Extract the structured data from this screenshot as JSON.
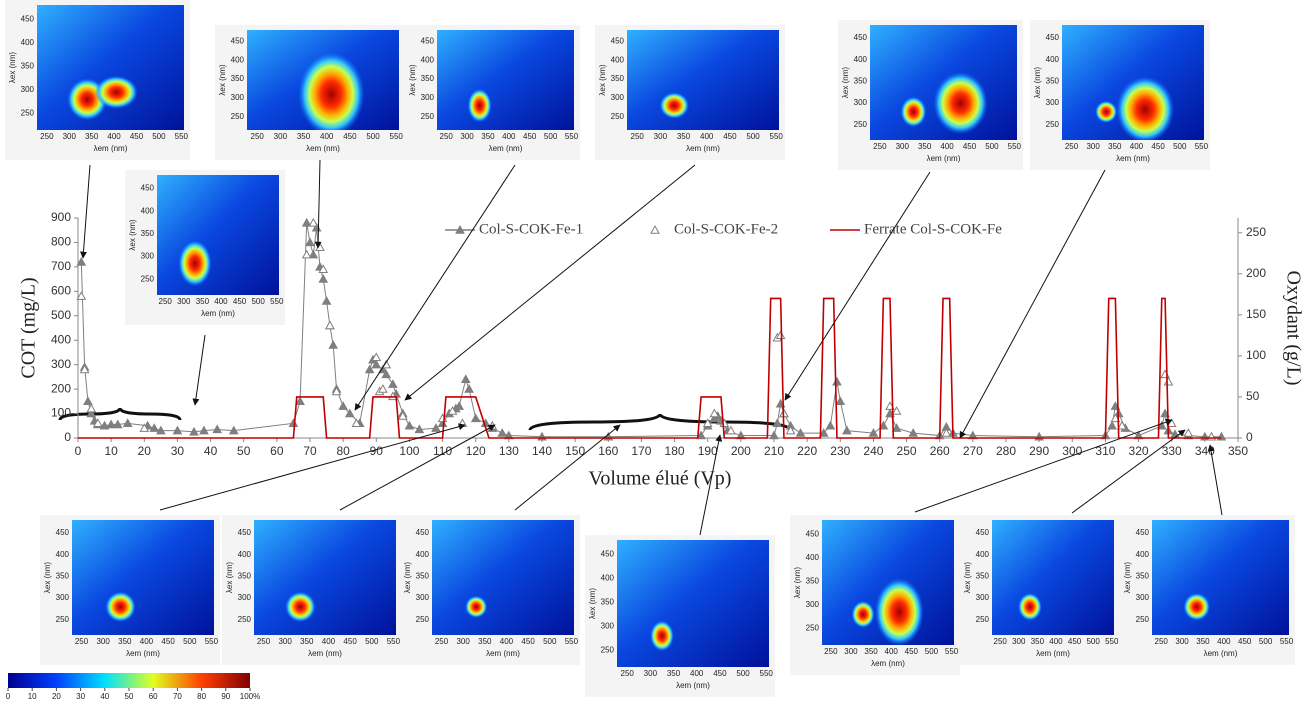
{
  "chart_data": {
    "type": "line",
    "xlabel": "Volume élué (Vp)",
    "ylabel": "COT (mg/L)",
    "y2label": "Oxydant (g/L)",
    "xlim": [
      0,
      350
    ],
    "xticks": [
      0,
      10,
      20,
      30,
      40,
      50,
      60,
      70,
      80,
      90,
      100,
      110,
      120,
      130,
      140,
      150,
      160,
      170,
      180,
      190,
      200,
      210,
      220,
      230,
      240,
      250,
      260,
      270,
      280,
      290,
      300,
      310,
      320,
      330,
      340,
      350
    ],
    "ylim": [
      0,
      900
    ],
    "yticks": [
      0,
      100,
      200,
      300,
      400,
      500,
      600,
      700,
      800,
      900
    ],
    "y2lim": [
      0,
      268
    ],
    "y2ticks": [
      0,
      50,
      100,
      150,
      200,
      250
    ],
    "series": [
      {
        "name": "Col-S-COK-Fe-1",
        "color": "#7f7f7f",
        "marker": "triangle",
        "filled": true,
        "line": true,
        "x": [
          1,
          2,
          3,
          4,
          5,
          6,
          8,
          10,
          12,
          15,
          21,
          23,
          25,
          30,
          35,
          38,
          42,
          47,
          65,
          67,
          69,
          70,
          71,
          72,
          73,
          74,
          75,
          76,
          77,
          78,
          80,
          82,
          85,
          88,
          89,
          90,
          92,
          93,
          95,
          96,
          98,
          100,
          103,
          108,
          110,
          112,
          114,
          115,
          117,
          118,
          120,
          123,
          125,
          128,
          130,
          140,
          160,
          188,
          190,
          192,
          193,
          194,
          196,
          200,
          210,
          211,
          212,
          213,
          215,
          218,
          225,
          227,
          229,
          230,
          232,
          240,
          243,
          245,
          247,
          252,
          260,
          262,
          264,
          270,
          290,
          310,
          312,
          313,
          314,
          316,
          320,
          327,
          328,
          329,
          331,
          335,
          340,
          345
        ],
        "values": [
          720,
          290,
          150,
          100,
          70,
          55,
          50,
          55,
          55,
          60,
          50,
          40,
          30,
          30,
          25,
          30,
          35,
          30,
          60,
          150,
          880,
          800,
          750,
          860,
          700,
          650,
          560,
          460,
          380,
          200,
          130,
          100,
          60,
          280,
          320,
          300,
          280,
          260,
          220,
          180,
          100,
          50,
          35,
          40,
          60,
          100,
          120,
          130,
          240,
          200,
          80,
          60,
          40,
          20,
          10,
          5,
          5,
          10,
          50,
          80,
          90,
          70,
          30,
          10,
          10,
          60,
          140,
          100,
          50,
          20,
          20,
          50,
          230,
          150,
          30,
          20,
          50,
          100,
          40,
          20,
          10,
          45,
          20,
          10,
          5,
          10,
          50,
          130,
          100,
          40,
          10,
          50,
          100,
          30,
          15,
          10,
          5,
          5
        ]
      },
      {
        "name": "Col-S-COK-Fe-2",
        "color": "#7f7f7f",
        "marker": "triangle",
        "filled": false,
        "line": false,
        "x": [
          1,
          2,
          4,
          6,
          20,
          69,
          71,
          73,
          74,
          76,
          78,
          84,
          90,
          91,
          92,
          93,
          95,
          98,
          110,
          113,
          116,
          125,
          190,
          192,
          195,
          197,
          211,
          212,
          213,
          215,
          245,
          247,
          262,
          313,
          315,
          328,
          329,
          330,
          335,
          342
        ],
        "values": [
          580,
          280,
          120,
          60,
          40,
          750,
          880,
          780,
          690,
          460,
          190,
          60,
          330,
          190,
          200,
          300,
          170,
          90,
          80,
          110,
          60,
          50,
          60,
          100,
          60,
          30,
          410,
          420,
          100,
          30,
          130,
          110,
          20,
          80,
          50,
          260,
          230,
          60,
          20,
          5
        ]
      },
      {
        "name": "Ferrate Col-S-COK-Fe",
        "color": "#c00000",
        "line": true,
        "axis": "y2",
        "x": [
          0,
          65,
          66,
          74,
          75,
          88,
          89,
          96,
          97,
          110,
          111,
          120,
          124,
          187,
          188,
          194,
          195,
          208,
          209,
          212,
          213,
          224,
          225,
          228,
          229,
          242,
          243,
          245,
          246,
          260,
          261,
          263,
          264,
          310,
          311,
          313,
          314,
          326,
          327,
          328,
          329,
          345
        ],
        "values": [
          0,
          0,
          50,
          50,
          0,
          0,
          50,
          50,
          0,
          0,
          50,
          50,
          0,
          0,
          50,
          50,
          0,
          0,
          170,
          170,
          0,
          0,
          170,
          170,
          0,
          0,
          170,
          170,
          0,
          0,
          170,
          170,
          0,
          0,
          170,
          170,
          0,
          0,
          170,
          170,
          0,
          0
        ]
      }
    ]
  },
  "eem_axes": {
    "xlabel": "λem (nm)",
    "ylabel": "λex (nm)",
    "xlim": [
      228,
      556
    ],
    "ylim": [
      215,
      480
    ],
    "xticks": [
      250,
      300,
      350,
      400,
      450,
      500,
      550
    ],
    "yticks": [
      250,
      300,
      350,
      400,
      450
    ]
  },
  "colorbar": {
    "ticks": [
      0,
      10,
      20,
      30,
      40,
      50,
      60,
      70,
      80,
      90,
      {
        "value": 100,
        "label": "100%"
      }
    ]
  }
}
